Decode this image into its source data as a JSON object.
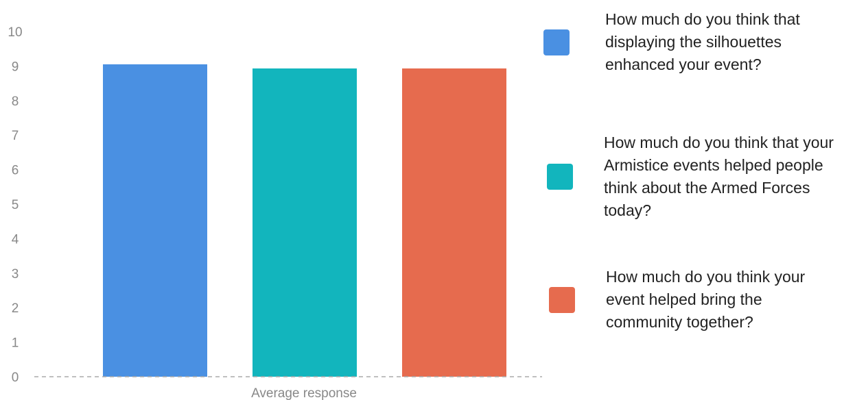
{
  "chart_data": {
    "type": "bar",
    "categories": [
      "Average response"
    ],
    "ylim": [
      0,
      10
    ],
    "yticks": [
      0,
      1,
      2,
      3,
      4,
      5,
      6,
      7,
      8,
      9,
      10
    ],
    "grid": false,
    "legend_position": "right",
    "series": [
      {
        "name": "How much do you think that displaying the silhouettes enhanced your event?",
        "values": [
          9.05
        ],
        "color": "#4a90e2"
      },
      {
        "name": "How much do you think that your Armistice events helped people think about the Armed Forces today?",
        "values": [
          8.93
        ],
        "color": "#12b5bd"
      },
      {
        "name": "How much do you think your event helped bring the community together?",
        "values": [
          8.93
        ],
        "color": "#e66b4e"
      }
    ]
  }
}
